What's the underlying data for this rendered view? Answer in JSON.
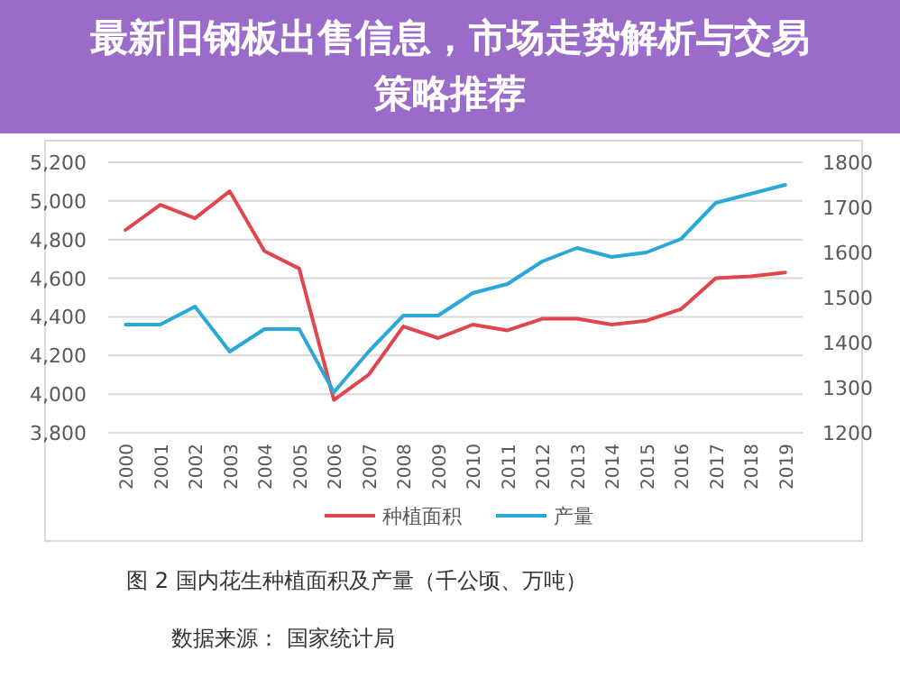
{
  "chart_data": {
    "type": "line",
    "title": "最新旧钢板出售信息，市场走势解析与交易策略推荐",
    "categories": [
      "2000",
      "2001",
      "2002",
      "2003",
      "2004",
      "2005",
      "2006",
      "2007",
      "2008",
      "2009",
      "2010",
      "2011",
      "2012",
      "2013",
      "2014",
      "2015",
      "2016",
      "2017",
      "2018",
      "2019"
    ],
    "series": [
      {
        "name": "种植面积",
        "color": "#e0474c",
        "values": [
          4850,
          4980,
          4910,
          5050,
          4740,
          4650,
          3970,
          4100,
          4350,
          4290,
          4360,
          4330,
          4390,
          4390,
          4360,
          4380,
          4440,
          4600,
          4610,
          4630
        ]
      },
      {
        "name": "产量",
        "color": "#2aa8d8",
        "axis": "y2",
        "values": [
          1440,
          1440,
          1480,
          1380,
          1430,
          1430,
          1290,
          1380,
          1460,
          1460,
          1510,
          1530,
          1580,
          1610,
          1590,
          1600,
          1630,
          1710,
          1730,
          1750
        ]
      }
    ],
    "ylim": [
      3800,
      5200
    ],
    "yticks": [
      {
        "value": 3800,
        "label": "3,800"
      },
      {
        "value": 4000,
        "label": "4,000"
      },
      {
        "value": 4200,
        "label": "4,200"
      },
      {
        "value": 4400,
        "label": "4,400"
      },
      {
        "value": 4600,
        "label": "4,600"
      },
      {
        "value": 4800,
        "label": "4,800"
      },
      {
        "value": 5000,
        "label": "5,000"
      },
      {
        "value": 5200,
        "label": "5,200"
      }
    ],
    "y2lim": [
      1200,
      1800
    ],
    "y2ticks": [
      1200,
      1300,
      1400,
      1500,
      1600,
      1700,
      1800
    ],
    "grid": "y",
    "legend": "bottom",
    "annotations": [
      "图 2 国内花生种植面积及产量（千公顷、万吨）",
      "数据来源： 国家统计局"
    ]
  }
}
